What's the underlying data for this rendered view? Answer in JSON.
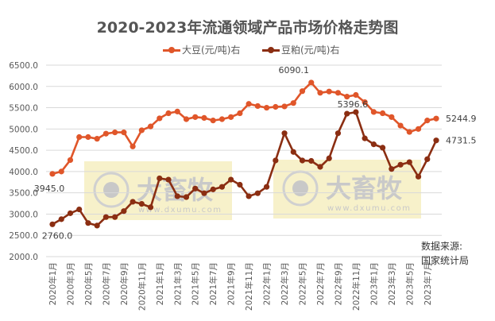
{
  "chart_data": {
    "type": "line",
    "title": "2020-2023年流通领域产品市场价格走势图",
    "xlabel": "",
    "ylabel": "",
    "ylim": [
      2000,
      6500
    ],
    "yticks": [
      "2000.0",
      "2500.0",
      "3000.0",
      "3500.0",
      "4000.0",
      "4500.0",
      "5000.0",
      "5500.0",
      "6000.0",
      "6500.0"
    ],
    "grid": true,
    "legend_position": "top",
    "x": [
      "2020年1月",
      "2020年2月",
      "2020年3月",
      "2020年4月",
      "2020年5月",
      "2020年6月",
      "2020年7月",
      "2020年8月",
      "2020年9月",
      "2020年10月",
      "2020年11月",
      "2020年12月",
      "2021年1月",
      "2021年2月",
      "2021年3月",
      "2021年4月",
      "2021年5月",
      "2021年6月",
      "2021年7月",
      "2021年8月",
      "2021年9月",
      "2021年10月",
      "2021年11月",
      "2021年12月",
      "2022年1月",
      "2022年2月",
      "2022年3月",
      "2022年4月",
      "2022年5月",
      "2022年6月",
      "2022年7月",
      "2022年8月",
      "2022年9月",
      "2022年10月",
      "2022年11月",
      "2022年12月",
      "2023年1月",
      "2023年2月",
      "2023年3月",
      "2023年4月",
      "2023年5月",
      "2023年6月",
      "2023年7月",
      "2023年8月"
    ],
    "xtick_labels": [
      "2020年1月",
      "2020年3月",
      "2020年5月",
      "2020年7月",
      "2020年9月",
      "2020年11月",
      "2021年1月",
      "2021年3月",
      "2021年5月",
      "2021年7月",
      "2021年9月",
      "2021年11月",
      "2022年1月",
      "2022年3月",
      "2022年5月",
      "2022年7月",
      "2022年9月",
      "2022年11月",
      "2023年1月",
      "2023年3月",
      "2023年5月",
      "2023年7月"
    ],
    "series": [
      {
        "name": "大豆(元/吨)右",
        "color": "#E0562A",
        "values": [
          3945.0,
          4000,
          4270,
          4810,
          4810,
          4770,
          4890,
          4920,
          4920,
          4590,
          4970,
          5060,
          5250,
          5370,
          5410,
          5230,
          5280,
          5260,
          5200,
          5230,
          5280,
          5370,
          5590,
          5540,
          5500,
          5520,
          5530,
          5610,
          5890,
          6090.1,
          5850,
          5880,
          5850,
          5760,
          5800,
          5630,
          5400,
          5370,
          5280,
          5080,
          4930,
          5000,
          5200,
          5244.9
        ]
      },
      {
        "name": "豆粕(元/吨)右",
        "color": "#8B2E12",
        "values": [
          2760.0,
          2880,
          3020,
          3110,
          2790,
          2730,
          2930,
          2930,
          3070,
          3290,
          3240,
          3160,
          3840,
          3810,
          3420,
          3400,
          3600,
          3490,
          3580,
          3640,
          3810,
          3690,
          3420,
          3490,
          3640,
          4260,
          4900,
          4460,
          4260,
          4250,
          4110,
          4310,
          4900,
          5360,
          5396.6,
          4780,
          4640,
          4560,
          4060,
          4160,
          4220,
          3880,
          4290,
          4731.5
        ]
      }
    ],
    "annotations": [
      {
        "series": 0,
        "index": 0,
        "text": "3945.0"
      },
      {
        "series": 0,
        "index": 29,
        "text": "6090.1"
      },
      {
        "series": 0,
        "index": 43,
        "text": "5244.9"
      },
      {
        "series": 1,
        "index": 0,
        "text": "2760.0"
      },
      {
        "series": 1,
        "index": 34,
        "text": "5396.6"
      },
      {
        "series": 1,
        "index": 43,
        "text": "4731.5"
      }
    ],
    "source": [
      "数据来源:",
      "国家统计局"
    ]
  },
  "watermark": {
    "brand": "大畜牧",
    "url": "www.dxumu.com"
  }
}
